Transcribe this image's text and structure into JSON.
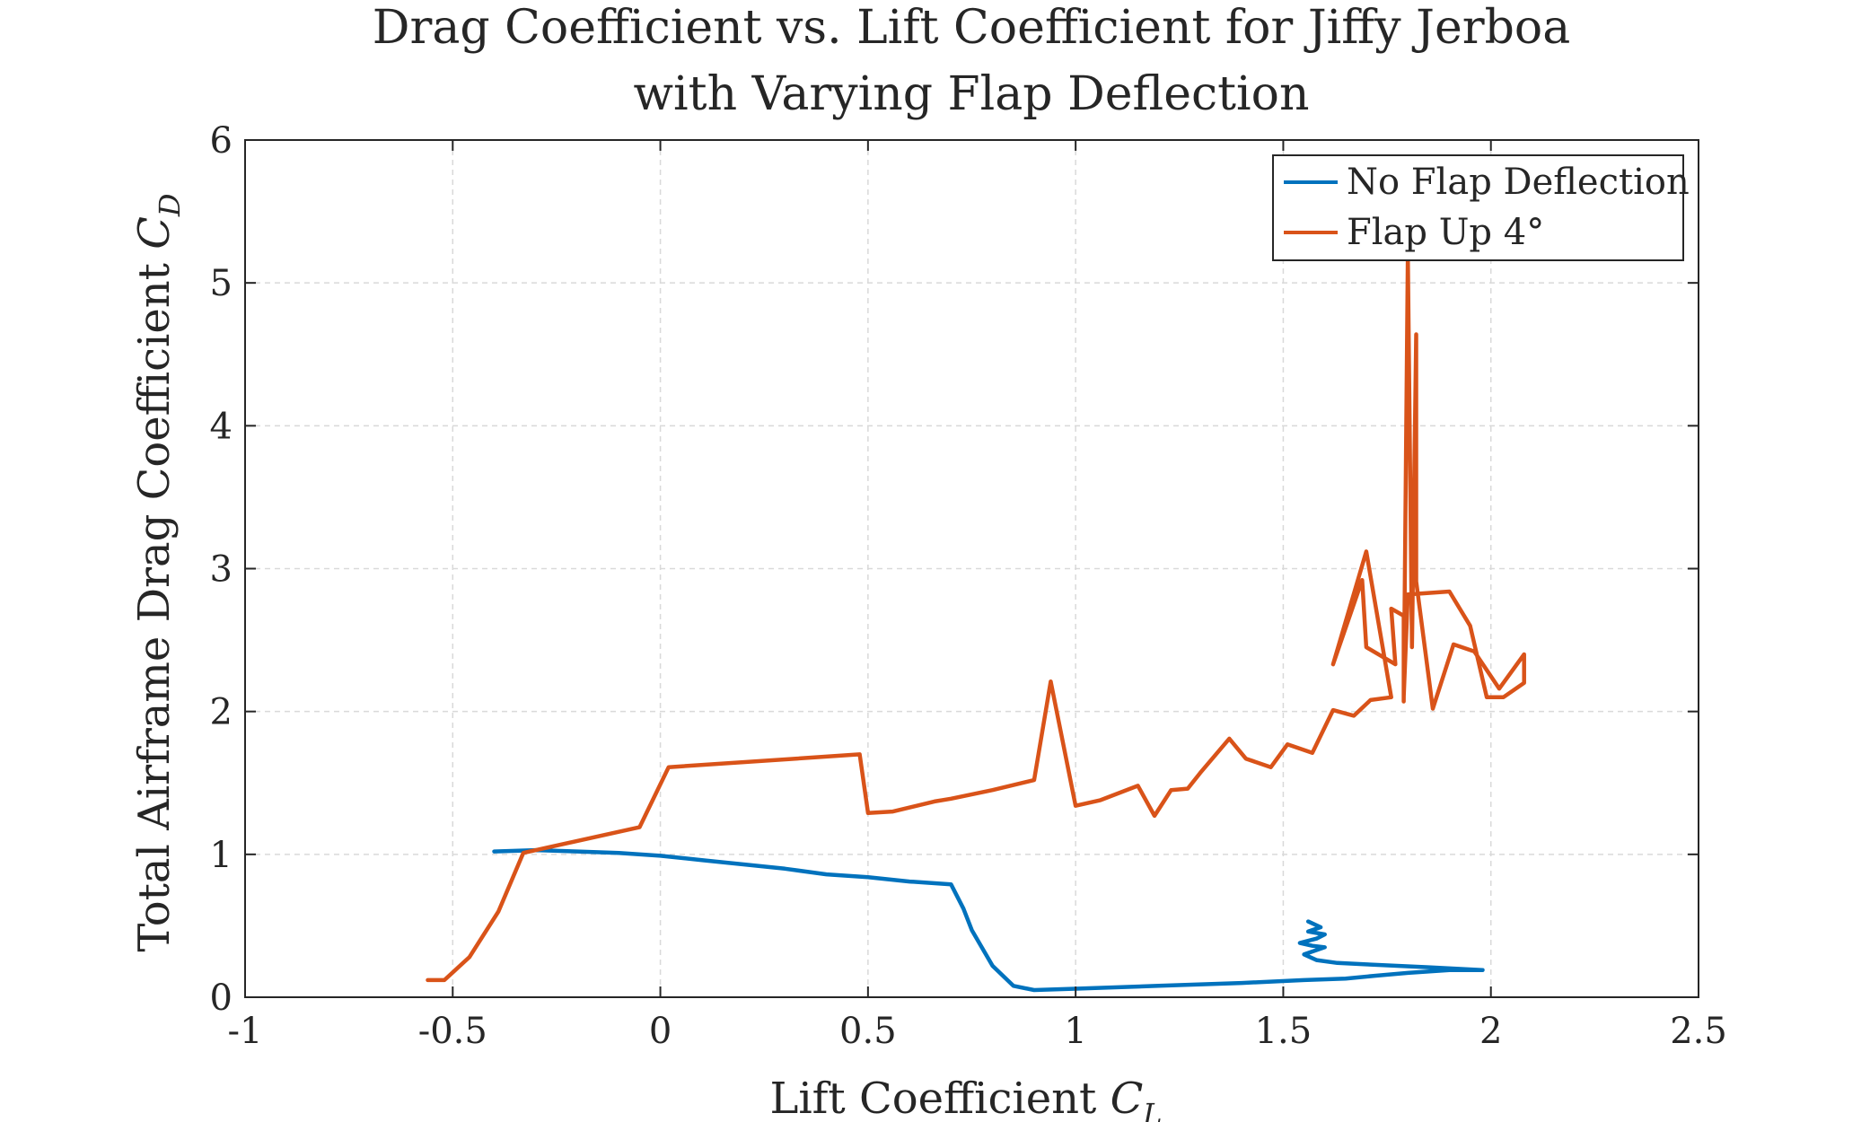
{
  "chart_data": {
    "type": "line",
    "title_lines": [
      "Drag Coefficient vs. Lift Coefficient for Jiffy Jerboa",
      "with Varying Flap Deflection"
    ],
    "xlabel": {
      "text": "Lift Coefficient ",
      "symbol": "C",
      "subscript": "L"
    },
    "ylabel": {
      "text": "Total Airframe Drag Coefficient ",
      "symbol": "C",
      "subscript": "D"
    },
    "xlim": [
      -1,
      2.5
    ],
    "ylim": [
      0,
      6
    ],
    "xticks": [
      -1,
      -0.5,
      0,
      0.5,
      1,
      1.5,
      2,
      2.5
    ],
    "xtick_labels": [
      "-1",
      "-0.5",
      "0",
      "0.5",
      "1",
      "1.5",
      "2",
      "2.5"
    ],
    "yticks": [
      0,
      1,
      2,
      3,
      4,
      5,
      6
    ],
    "ytick_labels": [
      "0",
      "1",
      "2",
      "3",
      "4",
      "5",
      "6"
    ],
    "grid": true,
    "legend_position": "top-right",
    "series": [
      {
        "name": "No Flap Deflection",
        "color": "#0072BD",
        "points": [
          [
            -0.4,
            1.02
          ],
          [
            -0.3,
            1.03
          ],
          [
            -0.2,
            1.02
          ],
          [
            -0.1,
            1.01
          ],
          [
            0.0,
            0.99
          ],
          [
            0.1,
            0.96
          ],
          [
            0.2,
            0.93
          ],
          [
            0.3,
            0.9
          ],
          [
            0.4,
            0.86
          ],
          [
            0.5,
            0.84
          ],
          [
            0.6,
            0.81
          ],
          [
            0.7,
            0.79
          ],
          [
            0.73,
            0.62
          ],
          [
            0.75,
            0.47
          ],
          [
            0.8,
            0.22
          ],
          [
            0.85,
            0.08
          ],
          [
            0.9,
            0.05
          ],
          [
            1.0,
            0.06
          ],
          [
            1.2,
            0.08
          ],
          [
            1.4,
            0.1
          ],
          [
            1.55,
            0.12
          ],
          [
            1.65,
            0.13
          ],
          [
            1.72,
            0.15
          ],
          [
            1.8,
            0.17
          ],
          [
            1.9,
            0.19
          ],
          [
            1.98,
            0.19
          ],
          [
            1.85,
            0.21
          ],
          [
            1.7,
            0.23
          ],
          [
            1.63,
            0.24
          ],
          [
            1.58,
            0.26
          ],
          [
            1.55,
            0.3
          ],
          [
            1.58,
            0.33
          ],
          [
            1.6,
            0.35
          ],
          [
            1.57,
            0.36
          ],
          [
            1.54,
            0.38
          ],
          [
            1.58,
            0.41
          ],
          [
            1.6,
            0.44
          ],
          [
            1.56,
            0.46
          ],
          [
            1.59,
            0.49
          ],
          [
            1.56,
            0.53
          ]
        ]
      },
      {
        "name": "Flap Up 4°",
        "color": "#D95319",
        "points": [
          [
            -0.56,
            0.12
          ],
          [
            -0.52,
            0.12
          ],
          [
            -0.46,
            0.28
          ],
          [
            -0.39,
            0.6
          ],
          [
            -0.33,
            1.01
          ],
          [
            -0.05,
            1.19
          ],
          [
            0.02,
            1.61
          ],
          [
            0.48,
            1.7
          ],
          [
            0.5,
            1.29
          ],
          [
            0.56,
            1.3
          ],
          [
            0.66,
            1.37
          ],
          [
            0.7,
            1.39
          ],
          [
            0.8,
            1.45
          ],
          [
            0.9,
            1.52
          ],
          [
            0.94,
            2.21
          ],
          [
            1.0,
            1.34
          ],
          [
            1.06,
            1.38
          ],
          [
            1.15,
            1.48
          ],
          [
            1.19,
            1.27
          ],
          [
            1.23,
            1.45
          ],
          [
            1.27,
            1.46
          ],
          [
            1.3,
            1.57
          ],
          [
            1.37,
            1.81
          ],
          [
            1.41,
            1.67
          ],
          [
            1.47,
            1.61
          ],
          [
            1.51,
            1.77
          ],
          [
            1.57,
            1.71
          ],
          [
            1.62,
            2.01
          ],
          [
            1.67,
            1.97
          ],
          [
            1.71,
            2.08
          ],
          [
            1.76,
            2.1
          ],
          [
            1.7,
            3.12
          ],
          [
            1.62,
            2.33
          ],
          [
            1.69,
            2.92
          ],
          [
            1.7,
            2.45
          ],
          [
            1.77,
            2.33
          ],
          [
            1.76,
            2.72
          ],
          [
            1.79,
            2.67
          ],
          [
            1.79,
            2.07
          ],
          [
            1.8,
            5.2
          ],
          [
            1.81,
            2.45
          ],
          [
            1.82,
            4.64
          ],
          [
            1.82,
            2.91
          ],
          [
            1.86,
            2.02
          ],
          [
            1.91,
            2.47
          ],
          [
            1.96,
            2.42
          ],
          [
            2.02,
            2.16
          ],
          [
            2.08,
            2.4
          ],
          [
            2.08,
            2.2
          ],
          [
            2.03,
            2.1
          ],
          [
            1.99,
            2.1
          ],
          [
            1.95,
            2.6
          ],
          [
            1.9,
            2.84
          ],
          [
            1.8,
            2.82
          ],
          [
            1.79,
            2.1
          ]
        ]
      }
    ]
  }
}
